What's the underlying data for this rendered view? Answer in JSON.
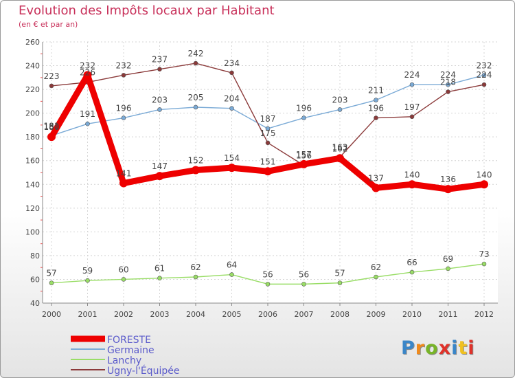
{
  "header": {
    "title": "Evolution des Impôts locaux par Habitant",
    "subtitle": "(en € et par an)"
  },
  "logo": {
    "text": "Proxiti",
    "colors": [
      "#3a86c8",
      "#f08a1c",
      "#78b428",
      "#e0322a",
      "#3a86c8",
      "#f0c020",
      "#e0322a"
    ]
  },
  "chart_data": {
    "type": "line",
    "title": "Evolution des Impôts locaux par Habitant",
    "subtitle": "(en € et par an)",
    "x": [
      "2000",
      "2001",
      "2002",
      "2003",
      "2004",
      "2005",
      "2006",
      "2007",
      "2008",
      "2009",
      "2010",
      "2011",
      "2012"
    ],
    "ylim": [
      40,
      260
    ],
    "yticks": [
      40,
      60,
      80,
      100,
      120,
      140,
      160,
      180,
      200,
      220,
      240,
      260
    ],
    "grid": true,
    "legend_position": "bottom-left",
    "series": [
      {
        "name": "FORESTE",
        "color": "#ee0000",
        "values": [
          180,
          232,
          141,
          147,
          152,
          154,
          151,
          157,
          162,
          137,
          140,
          136,
          140
        ]
      },
      {
        "name": "Germaine",
        "color": "#7aaad6",
        "values": [
          181,
          191,
          196,
          203,
          205,
          204,
          187,
          196,
          203,
          211,
          224,
          224,
          232
        ]
      },
      {
        "name": "Lanchy",
        "color": "#99dd66",
        "values": [
          57,
          59,
          60,
          61,
          62,
          64,
          56,
          56,
          57,
          62,
          66,
          69,
          73
        ]
      },
      {
        "name": "Ugny-l'Équipée",
        "color": "#8b3a3a",
        "values": [
          223,
          226,
          232,
          237,
          242,
          234,
          175,
          156,
          163,
          196,
          197,
          218,
          224
        ]
      }
    ]
  }
}
